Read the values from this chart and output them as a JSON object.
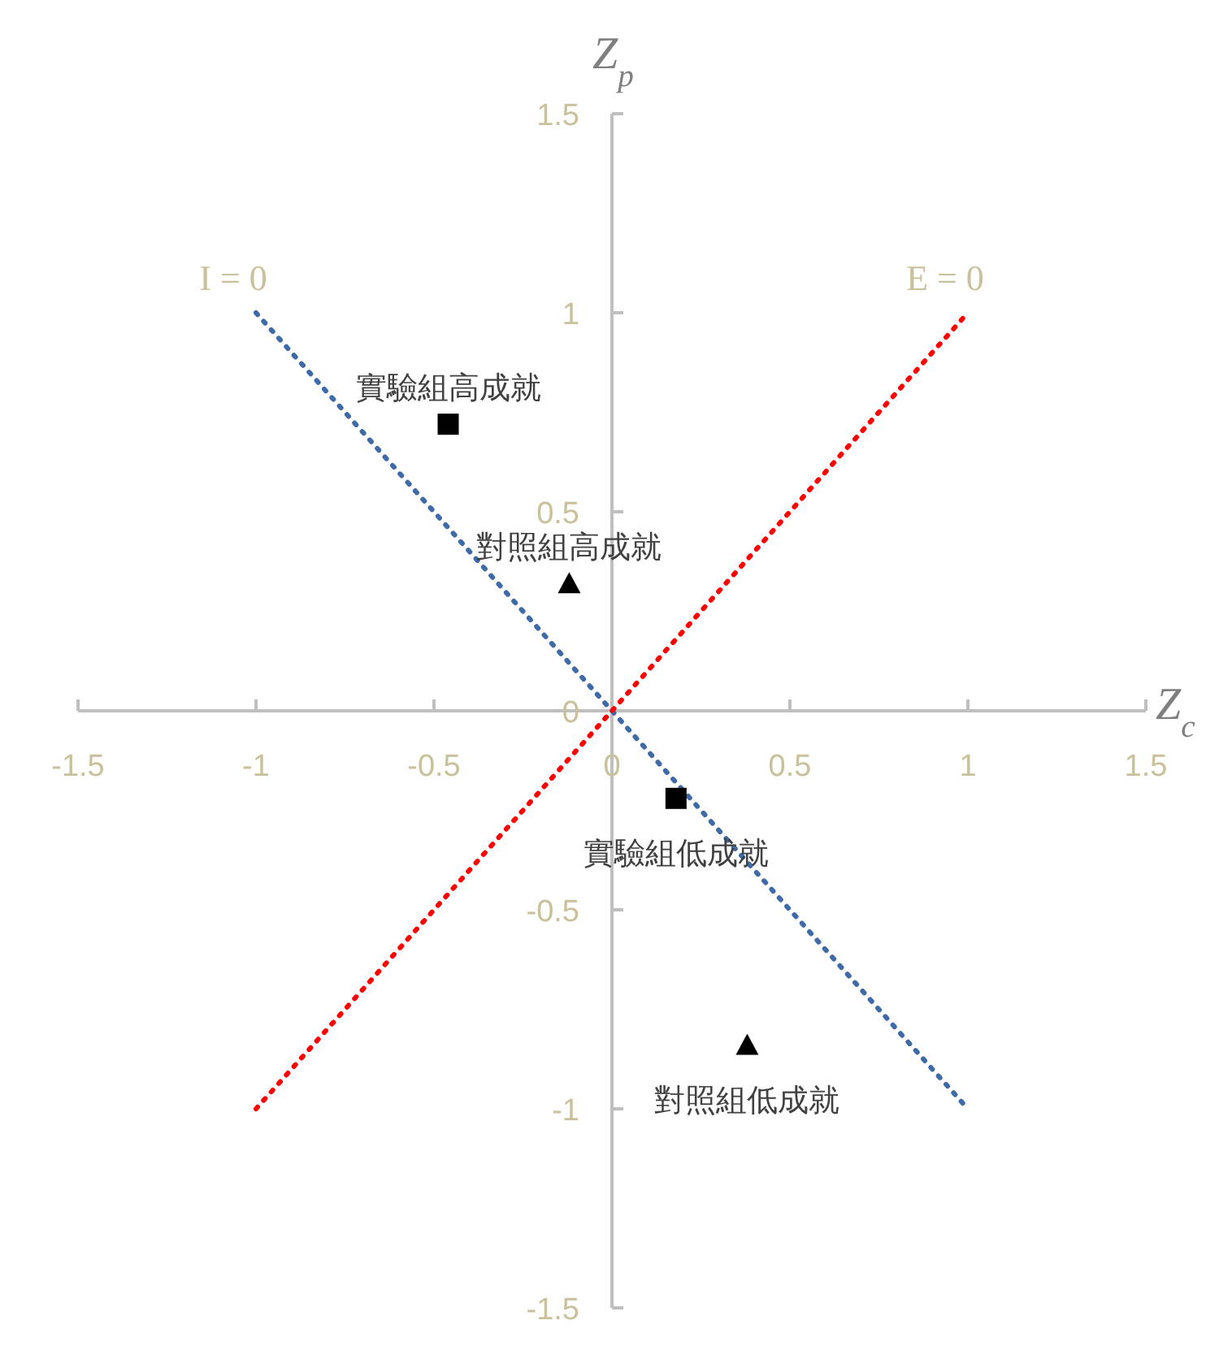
{
  "chart_data": {
    "type": "scatter",
    "xlabel": "Z$_{c}$",
    "ylabel": "Z$_{p}$",
    "xlim": [
      -1.5,
      1.5
    ],
    "ylim": [
      -1.5,
      1.5
    ],
    "xticks": [
      -1.5,
      -1,
      -0.5,
      0,
      0.5,
      1,
      1.5
    ],
    "yticks": [
      -1.5,
      -1,
      -0.5,
      0,
      0.5,
      1,
      1.5
    ],
    "grid": false,
    "line_style": "dotted",
    "series": [
      {
        "name": "I = 0",
        "type": "line",
        "color": "#3f6aa8",
        "marker": "none",
        "x": [
          -1,
          1
        ],
        "values": [
          1,
          -1
        ]
      },
      {
        "name": "E = 0",
        "type": "line",
        "color": "#ff0000",
        "marker": "none",
        "x": [
          -1,
          1
        ],
        "values": [
          -1,
          1
        ]
      },
      {
        "type": "scatter",
        "color": "#000000",
        "marker": "square",
        "x": [
          -0.46,
          0.18
        ],
        "values": [
          0.72,
          -0.22
        ]
      },
      {
        "type": "scatter",
        "color": "#000000",
        "marker": "triangle",
        "x": [
          -0.12,
          0.38
        ],
        "values": [
          0.32,
          -0.84
        ]
      }
    ],
    "annotations": [
      {
        "text": "實驗組高成就",
        "x": -0.46,
        "y": 0.72
      },
      {
        "text": "對照組高成就",
        "x": -0.12,
        "y": 0.32
      },
      {
        "text": "實驗組低成就",
        "x": 0.18,
        "y": -0.22
      },
      {
        "text": "對照組低成就",
        "x": 0.38,
        "y": -0.84
      }
    ]
  }
}
